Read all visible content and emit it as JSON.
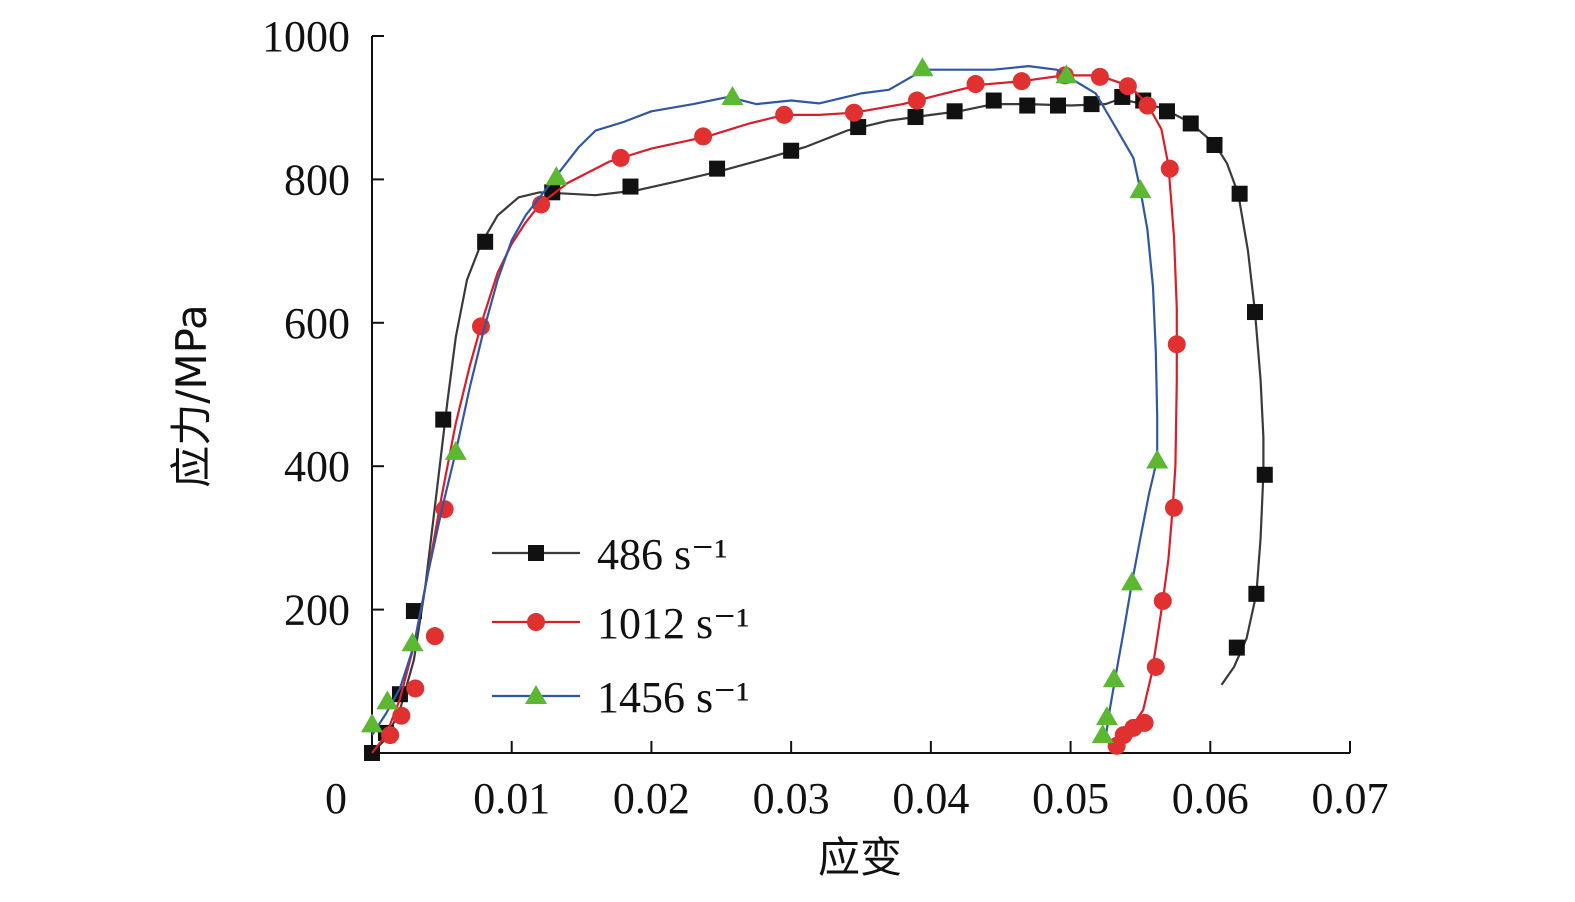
{
  "chart_data": {
    "type": "line",
    "title": "",
    "xlabel": "应变",
    "ylabel": "应力/MPa",
    "xlim": [
      0,
      0.07
    ],
    "ylim": [
      0,
      1000
    ],
    "x_ticks": [
      "0",
      "0.01",
      "0.02",
      "0.03",
      "0.04",
      "0.05",
      "0.06",
      "0.07"
    ],
    "x_tick_values": [
      0,
      0.01,
      0.02,
      0.03,
      0.04,
      0.05,
      0.06,
      0.07
    ],
    "y_ticks": [
      "200",
      "400",
      "600",
      "800",
      "1000"
    ],
    "y_tick_values": [
      200,
      400,
      600,
      800,
      1000
    ],
    "grid": false,
    "legend_position": "bottom-left",
    "series": [
      {
        "name": "486 s⁻¹",
        "line_color": "#3a3a3a",
        "marker_color": "#111111",
        "marker": "square",
        "curve": [
          [
            0,
            0
          ],
          [
            0.001,
            20
          ],
          [
            0.002,
            60
          ],
          [
            0.003,
            130
          ],
          [
            0.0038,
            230
          ],
          [
            0.0046,
            360
          ],
          [
            0.0054,
            490
          ],
          [
            0.006,
            580
          ],
          [
            0.0068,
            660
          ],
          [
            0.0078,
            710
          ],
          [
            0.009,
            750
          ],
          [
            0.0105,
            775
          ],
          [
            0.012,
            782
          ],
          [
            0.014,
            780
          ],
          [
            0.016,
            778
          ],
          [
            0.019,
            785
          ],
          [
            0.022,
            798
          ],
          [
            0.025,
            812
          ],
          [
            0.028,
            828
          ],
          [
            0.031,
            845
          ],
          [
            0.034,
            868
          ],
          [
            0.037,
            882
          ],
          [
            0.04,
            890
          ],
          [
            0.042,
            895
          ],
          [
            0.0445,
            905
          ],
          [
            0.047,
            905
          ],
          [
            0.05,
            903
          ],
          [
            0.0525,
            905
          ],
          [
            0.0535,
            912
          ],
          [
            0.0565,
            900
          ],
          [
            0.0585,
            880
          ],
          [
            0.0603,
            850
          ],
          [
            0.0612,
            822
          ],
          [
            0.062,
            780
          ],
          [
            0.0627,
            700
          ],
          [
            0.0632,
            615
          ],
          [
            0.0636,
            520
          ],
          [
            0.0638,
            440
          ],
          [
            0.0638,
            390
          ],
          [
            0.0636,
            300
          ],
          [
            0.0633,
            222
          ],
          [
            0.0626,
            160
          ],
          [
            0.0617,
            120
          ],
          [
            0.0608,
            95
          ]
        ],
        "markers": [
          [
            0,
            0
          ],
          [
            0.001,
            28
          ],
          [
            0.002,
            82
          ],
          [
            0.003,
            198
          ],
          [
            0.0051,
            465
          ],
          [
            0.0081,
            713
          ],
          [
            0.0129,
            782
          ],
          [
            0.0185,
            790
          ],
          [
            0.0247,
            815
          ],
          [
            0.03,
            840
          ],
          [
            0.0348,
            873
          ],
          [
            0.0389,
            887
          ],
          [
            0.0417,
            895
          ],
          [
            0.0445,
            910
          ],
          [
            0.0469,
            903
          ],
          [
            0.0491,
            903
          ],
          [
            0.0515,
            905
          ],
          [
            0.0537,
            915
          ],
          [
            0.0552,
            910
          ],
          [
            0.0569,
            895
          ],
          [
            0.0586,
            878
          ],
          [
            0.0603,
            848
          ],
          [
            0.0621,
            780
          ],
          [
            0.0632,
            615
          ],
          [
            0.0639,
            388
          ],
          [
            0.0633,
            222
          ],
          [
            0.0619,
            147
          ]
        ]
      },
      {
        "name": "1012 s⁻¹",
        "line_color": "#d81e2a",
        "marker_color": "#e0302f",
        "marker": "circle",
        "curve": [
          [
            0,
            0
          ],
          [
            0.001,
            25
          ],
          [
            0.002,
            75
          ],
          [
            0.003,
            150
          ],
          [
            0.004,
            250
          ],
          [
            0.005,
            360
          ],
          [
            0.006,
            460
          ],
          [
            0.007,
            540
          ],
          [
            0.008,
            610
          ],
          [
            0.009,
            670
          ],
          [
            0.01,
            710
          ],
          [
            0.011,
            740
          ],
          [
            0.012,
            765
          ],
          [
            0.014,
            795
          ],
          [
            0.017,
            825
          ],
          [
            0.02,
            843
          ],
          [
            0.024,
            860
          ],
          [
            0.027,
            878
          ],
          [
            0.0295,
            890
          ],
          [
            0.032,
            890
          ],
          [
            0.0345,
            893
          ],
          [
            0.038,
            905
          ],
          [
            0.041,
            920
          ],
          [
            0.0435,
            932
          ],
          [
            0.0465,
            937
          ],
          [
            0.0495,
            945
          ],
          [
            0.052,
            945
          ],
          [
            0.0535,
            935
          ],
          [
            0.0545,
            925
          ],
          [
            0.0555,
            905
          ],
          [
            0.0565,
            870
          ],
          [
            0.057,
            820
          ],
          [
            0.0574,
            720
          ],
          [
            0.0576,
            620
          ],
          [
            0.0576,
            520
          ],
          [
            0.0575,
            400
          ],
          [
            0.0573,
            340
          ],
          [
            0.057,
            270
          ],
          [
            0.0566,
            212
          ],
          [
            0.0562,
            160
          ],
          [
            0.0558,
            110
          ],
          [
            0.0552,
            60
          ],
          [
            0.0545,
            40
          ],
          [
            0.0538,
            25
          ],
          [
            0.0533,
            10
          ]
        ],
        "markers": [
          [
            0.0013,
            25
          ],
          [
            0.0021,
            52
          ],
          [
            0.0031,
            90
          ],
          [
            0.0045,
            163
          ],
          [
            0.0052,
            340
          ],
          [
            0.0078,
            595
          ],
          [
            0.0121,
            765
          ],
          [
            0.0178,
            830
          ],
          [
            0.0237,
            860
          ],
          [
            0.0295,
            890
          ],
          [
            0.0345,
            893
          ],
          [
            0.039,
            910
          ],
          [
            0.0432,
            933
          ],
          [
            0.0465,
            937
          ],
          [
            0.0496,
            945
          ],
          [
            0.0521,
            943
          ],
          [
            0.0541,
            930
          ],
          [
            0.0555,
            903
          ],
          [
            0.0571,
            815
          ],
          [
            0.0576,
            570
          ],
          [
            0.0574,
            342
          ],
          [
            0.0566,
            212
          ],
          [
            0.0561,
            120
          ],
          [
            0.0553,
            42
          ],
          [
            0.0545,
            35
          ],
          [
            0.0538,
            25
          ],
          [
            0.0533,
            10
          ]
        ]
      },
      {
        "name": "1456 s⁻¹",
        "line_color": "#2f57a6",
        "marker_color": "#5cb830",
        "marker": "triangle",
        "curve": [
          [
            0,
            25
          ],
          [
            0.001,
            55
          ],
          [
            0.002,
            90
          ],
          [
            0.003,
            150
          ],
          [
            0.004,
            250
          ],
          [
            0.005,
            340
          ],
          [
            0.006,
            420
          ],
          [
            0.007,
            510
          ],
          [
            0.008,
            590
          ],
          [
            0.009,
            660
          ],
          [
            0.01,
            715
          ],
          [
            0.011,
            750
          ],
          [
            0.012,
            775
          ],
          [
            0.0132,
            805
          ],
          [
            0.0148,
            845
          ],
          [
            0.016,
            868
          ],
          [
            0.018,
            880
          ],
          [
            0.02,
            895
          ],
          [
            0.023,
            905
          ],
          [
            0.0255,
            915
          ],
          [
            0.0275,
            905
          ],
          [
            0.03,
            910
          ],
          [
            0.032,
            906
          ],
          [
            0.035,
            920
          ],
          [
            0.037,
            925
          ],
          [
            0.0395,
            953
          ],
          [
            0.042,
            953
          ],
          [
            0.0445,
            953
          ],
          [
            0.047,
            958
          ],
          [
            0.049,
            953
          ],
          [
            0.0505,
            935
          ],
          [
            0.0518,
            920
          ],
          [
            0.053,
            880
          ],
          [
            0.0545,
            830
          ],
          [
            0.055,
            785
          ],
          [
            0.0555,
            730
          ],
          [
            0.0559,
            650
          ],
          [
            0.0561,
            560
          ],
          [
            0.0562,
            470
          ],
          [
            0.0562,
            410
          ],
          [
            0.0556,
            360
          ],
          [
            0.055,
            300
          ],
          [
            0.0544,
            238
          ],
          [
            0.0538,
            170
          ],
          [
            0.0532,
            105
          ],
          [
            0.0528,
            60
          ],
          [
            0.0525,
            20
          ]
        ],
        "markers": [
          [
            0,
            40
          ],
          [
            0.0011,
            72
          ],
          [
            0.0029,
            153
          ],
          [
            0.006,
            420
          ],
          [
            0.0132,
            803
          ],
          [
            0.0258,
            915
          ],
          [
            0.0394,
            955
          ],
          [
            0.0497,
            945
          ],
          [
            0.055,
            785
          ],
          [
            0.0562,
            408
          ],
          [
            0.0544,
            238
          ],
          [
            0.0531,
            103
          ],
          [
            0.0526,
            50
          ],
          [
            0.0523,
            25
          ]
        ]
      }
    ]
  }
}
